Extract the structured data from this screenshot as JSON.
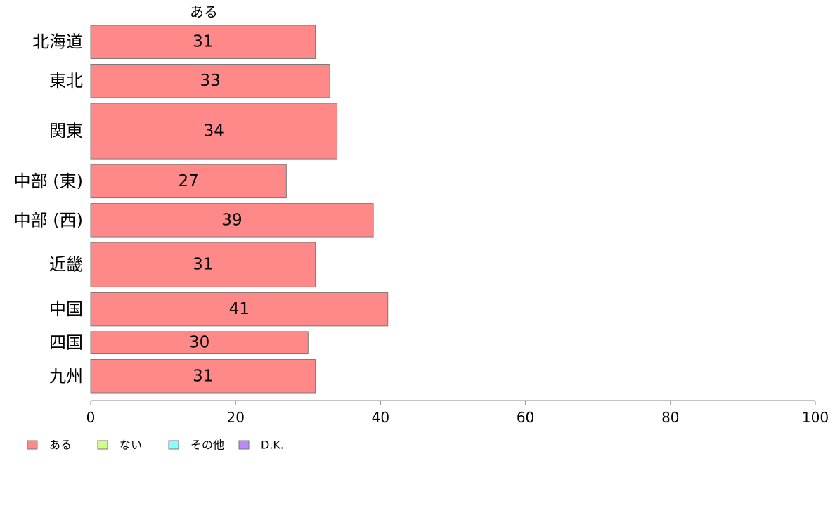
{
  "chart_data": {
    "type": "bar",
    "orientation": "horizontal",
    "column_header": "ある",
    "categories": [
      "北海道",
      "東北",
      "関東",
      "中部 (東)",
      "中部 (西)",
      "近畿",
      "中国",
      "四国",
      "九州"
    ],
    "series": [
      {
        "name": "ある",
        "values": [
          31,
          33,
          34,
          27,
          39,
          31,
          41,
          30,
          31
        ],
        "color": "#ff8888"
      }
    ],
    "relative_bar_weights": [
      3,
      3,
      5,
      3,
      3,
      4,
      3,
      2,
      3
    ],
    "xlim": [
      0,
      100
    ],
    "xticks": [
      0,
      20,
      40,
      60,
      80,
      100
    ],
    "grid": false,
    "legend": {
      "position": "bottom-left",
      "items": [
        {
          "label": "ある",
          "color": "#ff8888"
        },
        {
          "label": "ない",
          "color": "#ccff88"
        },
        {
          "label": "その他",
          "color": "#88ffff"
        },
        {
          "label": "D.K.",
          "color": "#bb88ff"
        }
      ]
    }
  }
}
